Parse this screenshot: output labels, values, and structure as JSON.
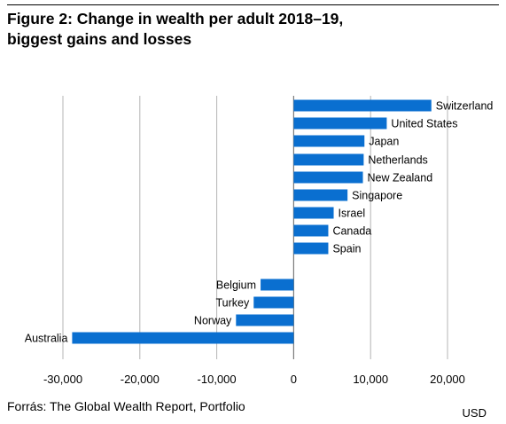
{
  "header": {
    "title_line1": "Figure 2: Change in wealth per adult 2018–19,",
    "title_line2": "biggest gains and losses"
  },
  "footer": {
    "source": "Forrás: The Global Wealth Report, Portfolio",
    "unit": "USD"
  },
  "colors": {
    "bar": "#0a6fd0",
    "grid": "#b4b4b4",
    "axis": "#7a7a7a"
  },
  "chart_data": {
    "type": "bar",
    "orientation": "horizontal",
    "title": "Figure 2: Change in wealth per adult 2018–19, biggest gains and losses",
    "unit": "USD",
    "categories": [
      "Switzerland",
      "United States",
      "Japan",
      "Netherlands",
      "New Zealand",
      "Singapore",
      "Israel",
      "Canada",
      "Spain",
      "Belgium",
      "Turkey",
      "Norway",
      "Australia"
    ],
    "values": [
      17900,
      12100,
      9200,
      9100,
      9000,
      7000,
      5200,
      4500,
      4500,
      -4300,
      -5200,
      -7500,
      -28800
    ],
    "xlim": [
      -30000,
      20000
    ],
    "xticks": [
      -30000,
      -20000,
      -10000,
      0,
      10000,
      20000
    ],
    "xtick_labels": [
      "-30,000",
      "-20,000",
      "-10,000",
      "0",
      "10,000",
      "20,000"
    ],
    "grid": true
  }
}
